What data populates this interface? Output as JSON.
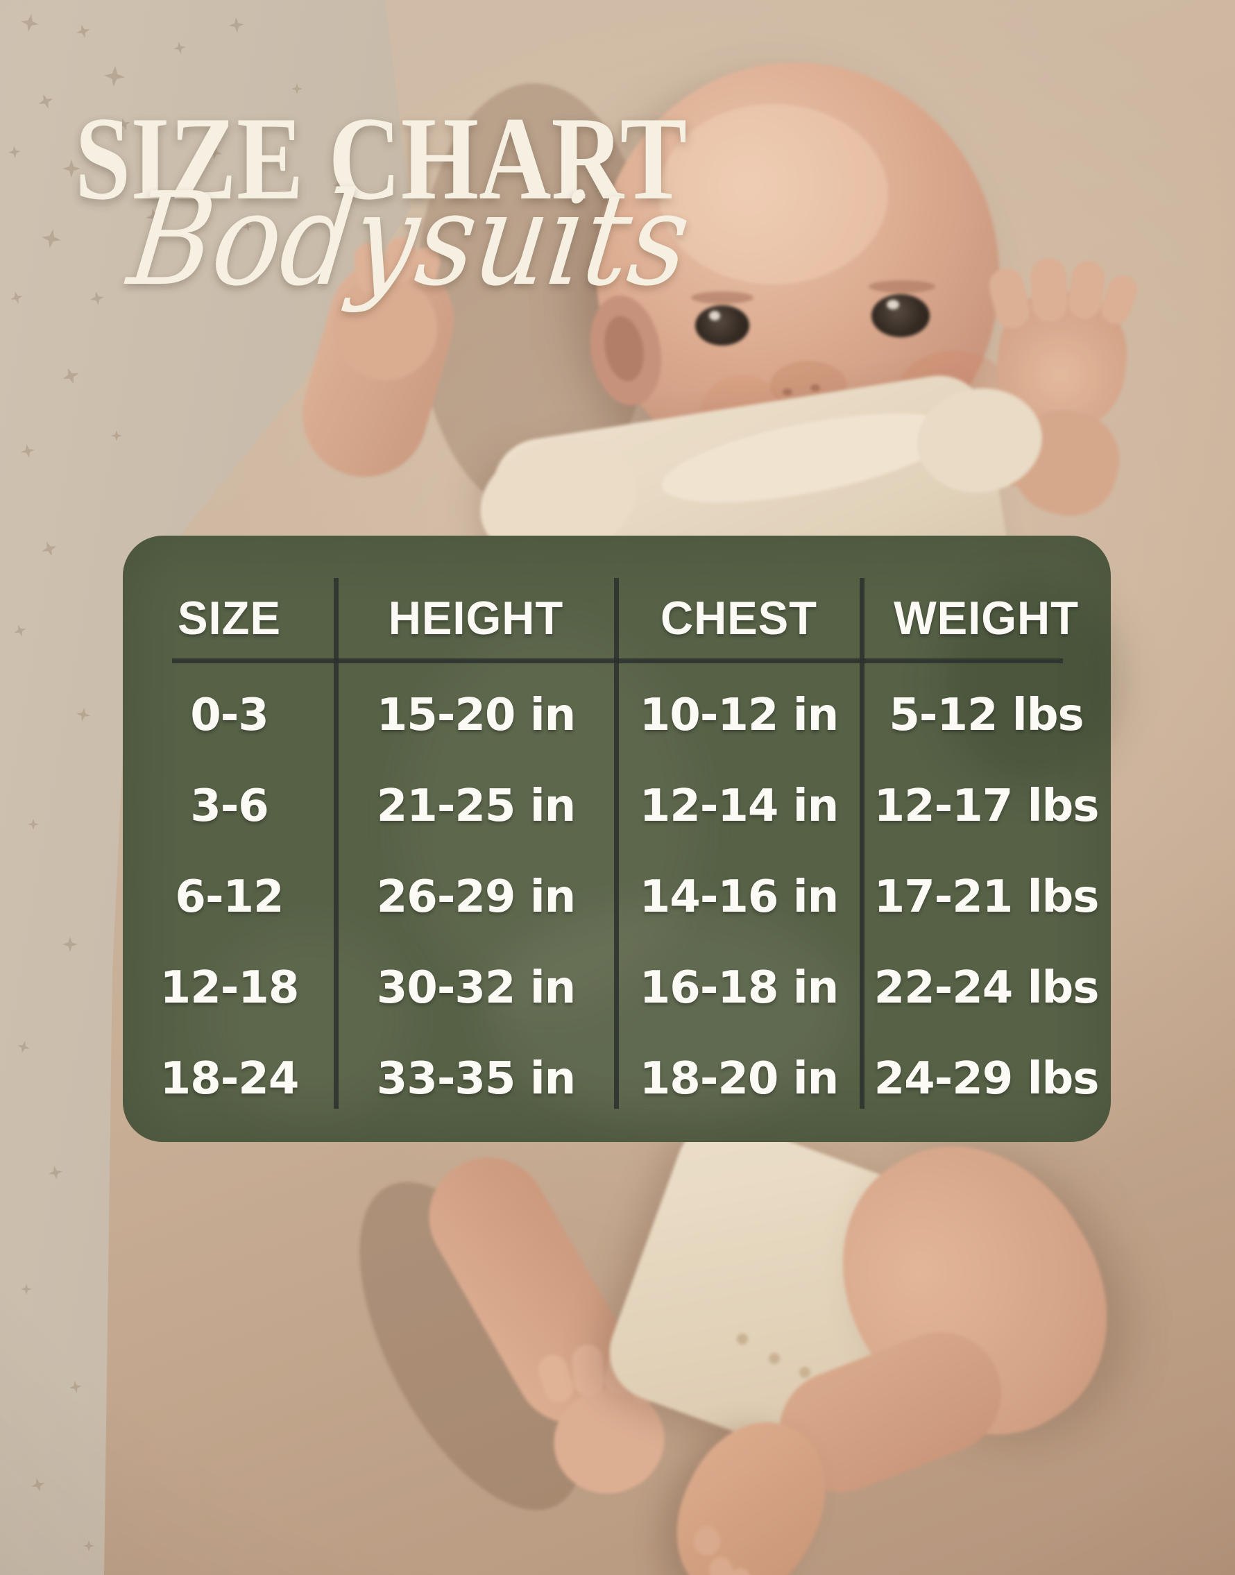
{
  "title": "SIZE CHART",
  "subtitle": "Bodysuits",
  "chart_data": {
    "type": "table",
    "title": "SIZE CHART",
    "subtitle": "Bodysuits",
    "columns": [
      "SIZE",
      "HEIGHT",
      "CHEST",
      "WEIGHT"
    ],
    "rows": [
      [
        "0-3",
        "15-20 in",
        "10-12 in",
        "5-12 lbs"
      ],
      [
        "3-6",
        "21-25 in",
        "12-14 in",
        "12-17 lbs"
      ],
      [
        "6-12",
        "26-29 in",
        "14-16 in",
        "17-21 lbs"
      ],
      [
        "12-18",
        "30-32 in",
        "16-18 in",
        "22-24 lbs"
      ],
      [
        "18-24",
        "33-35 in",
        "18-20 in",
        "24-29 lbs"
      ]
    ],
    "legend_position": "none",
    "grid": "three dark column dividers and one header rule inside rounded green panel"
  },
  "colors": {
    "panel_green": "#566146",
    "divider_dark": "#2c302e",
    "table_text": "#fcfaf4",
    "title_cream": "#f6f0e3",
    "blanket_beige": "#c9b29b",
    "fabric_gray": "#c4b9a9",
    "star_tan": "#a3917c",
    "skin_tone": "#d8a88c",
    "bodysuit_cream": "#ece1cc"
  }
}
